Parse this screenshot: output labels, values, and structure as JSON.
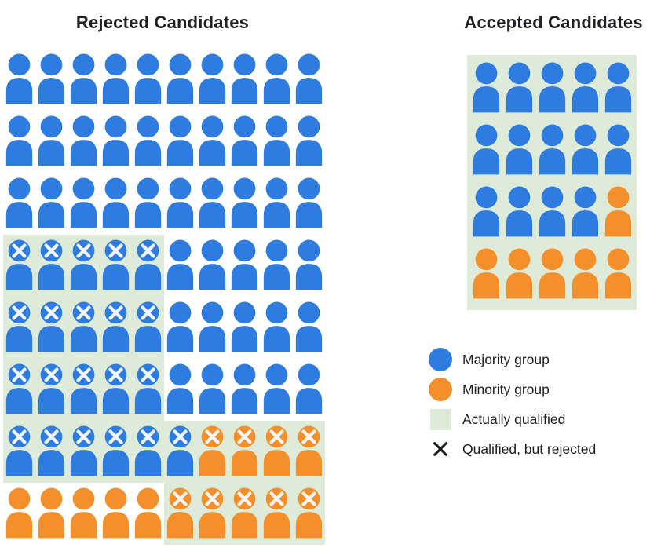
{
  "titles": {
    "rejected": "Rejected Candidates",
    "accepted": "Accepted Candidates"
  },
  "colors": {
    "majority": "#2e7ce0",
    "minority": "#f3902b",
    "qualified_bg": "#dfebd9",
    "icon_x_mark": "#f2f5fb",
    "legend_x": "#1a1a1a",
    "title_text": "#202124",
    "label_text": "#1f1f1f",
    "background": "#ffffff"
  },
  "cell_code_legend": {
    "b": "majority group candidate (blue person)",
    "o": "minority group candidate (orange person)",
    "q": "suffix: actually qualified (green background)",
    "x": "suffix: qualified but rejected (X mark on icon)"
  },
  "chart_data": [
    {
      "id": "rejected",
      "type": "pictograph",
      "title": "Rejected Candidates",
      "columns": 10,
      "rows": [
        [
          "b",
          "b",
          "b",
          "b",
          "b",
          "b",
          "b",
          "b",
          "b",
          "b"
        ],
        [
          "b",
          "b",
          "b",
          "b",
          "b",
          "b",
          "b",
          "b",
          "b",
          "b"
        ],
        [
          "b",
          "b",
          "b",
          "b",
          "b",
          "b",
          "b",
          "b",
          "b",
          "b"
        ],
        [
          "bqx",
          "bqx",
          "bqx",
          "bqx",
          "bqx",
          "b",
          "b",
          "b",
          "b",
          "b"
        ],
        [
          "bqx",
          "bqx",
          "bqx",
          "bqx",
          "bqx",
          "b",
          "b",
          "b",
          "b",
          "b"
        ],
        [
          "bqx",
          "bqx",
          "bqx",
          "bqx",
          "bqx",
          "b",
          "b",
          "b",
          "b",
          "b"
        ],
        [
          "bqx",
          "bqx",
          "bqx",
          "bqx",
          "bqx",
          "bqx",
          "oqx",
          "oqx",
          "oqx",
          "oqx"
        ],
        [
          "o",
          "o",
          "o",
          "o",
          "o",
          "oqx",
          "oqx",
          "oqx",
          "oqx",
          "oqx"
        ]
      ],
      "counts": {
        "total": 80,
        "majority": 66,
        "minority": 14,
        "qualified_but_rejected_majority": 21,
        "qualified_but_rejected_minority": 9
      }
    },
    {
      "id": "accepted",
      "type": "pictograph",
      "title": "Accepted Candidates",
      "columns": 5,
      "block_background": true,
      "rows": [
        [
          "bq",
          "bq",
          "bq",
          "bq",
          "bq"
        ],
        [
          "bq",
          "bq",
          "bq",
          "bq",
          "bq"
        ],
        [
          "bq",
          "bq",
          "bq",
          "bq",
          "oq"
        ],
        [
          "oq",
          "oq",
          "oq",
          "oq",
          "oq"
        ]
      ],
      "counts": {
        "total": 20,
        "majority": 14,
        "minority": 6
      }
    }
  ],
  "legend": {
    "items": [
      {
        "id": "majority-group",
        "swatch": "circle",
        "color_key": "majority",
        "label": "Majority group"
      },
      {
        "id": "minority-group",
        "swatch": "circle",
        "color_key": "minority",
        "label": "Minority group"
      },
      {
        "id": "actually-qualified",
        "swatch": "square",
        "color_key": "qualified_bg",
        "label": "Actually qualified"
      },
      {
        "id": "qualified-but-rejected",
        "swatch": "x",
        "color_key": "legend_x",
        "label": "Qualified, but rejected"
      }
    ]
  }
}
